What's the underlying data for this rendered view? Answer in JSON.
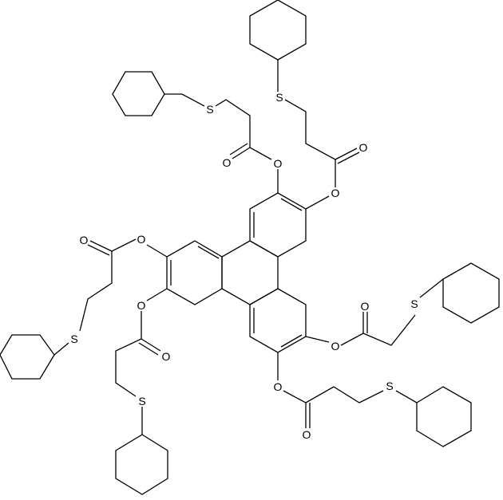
{
  "atoms": [
    {
      "label": "S"
    },
    {
      "label": "S"
    },
    {
      "label": "S"
    },
    {
      "label": "S"
    },
    {
      "label": "S"
    },
    {
      "label": "S"
    },
    {
      "label": "O"
    },
    {
      "label": "O"
    },
    {
      "label": "O"
    },
    {
      "label": "O"
    },
    {
      "label": "O"
    },
    {
      "label": "O"
    },
    {
      "label": "O"
    },
    {
      "label": "O"
    },
    {
      "label": "O"
    },
    {
      "label": "O"
    },
    {
      "label": "O"
    },
    {
      "label": "O"
    }
  ]
}
